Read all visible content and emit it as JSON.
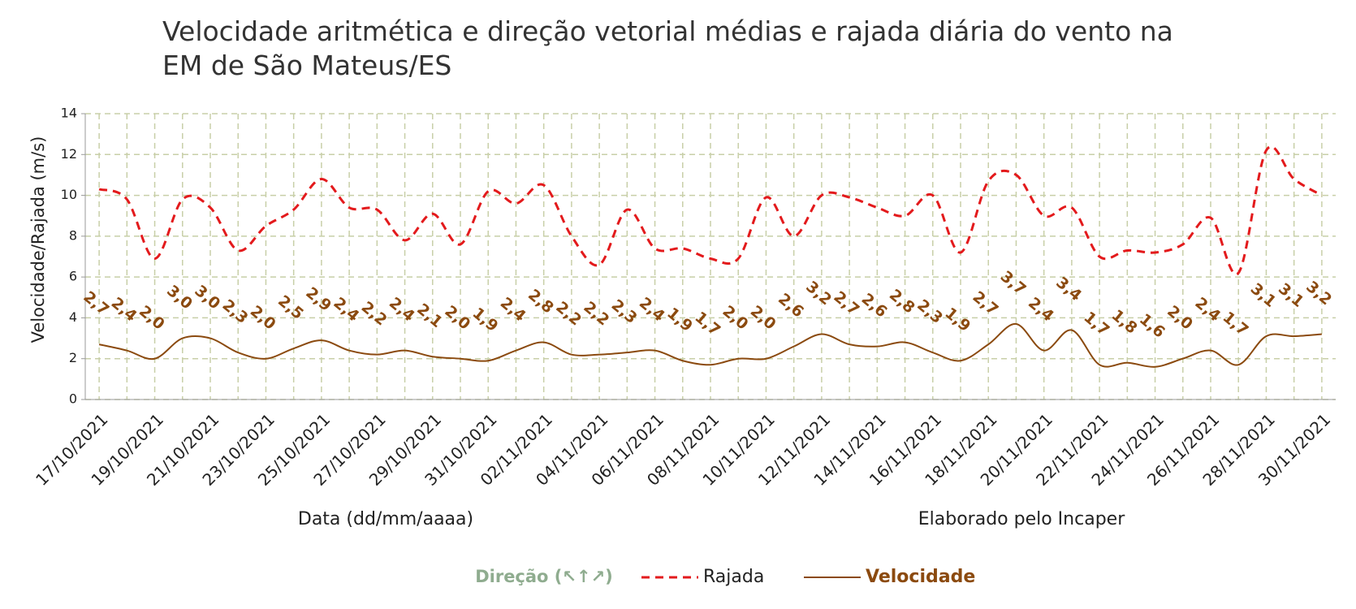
{
  "chart_data": {
    "type": "line",
    "title": "Velocidade aritmética e direção vetorial médias e rajada diária do vento na EM de São Mateus/ES",
    "y_label": "Velocidade/Rajada (m/s)",
    "x_label": "Data (dd/mm/aaaa)",
    "credit": "Elaborado pelo Incaper",
    "direction_legend": "Direção (↖↑↗)",
    "categories": [
      "17/10/2021",
      null,
      "19/10/2021",
      null,
      "21/10/2021",
      null,
      "23/10/2021",
      null,
      "25/10/2021",
      null,
      "27/10/2021",
      null,
      "29/10/2021",
      null,
      "31/10/2021",
      null,
      "02/11/2021",
      null,
      "04/11/2021",
      null,
      "06/11/2021",
      null,
      "08/11/2021",
      null,
      "10/11/2021",
      null,
      "12/11/2021",
      null,
      "14/11/2021",
      null,
      "16/11/2021",
      null,
      "18/11/2021",
      null,
      "20/11/2021",
      null,
      "22/11/2021",
      null,
      "24/11/2021",
      null,
      "26/11/2021",
      null,
      "28/11/2021",
      null,
      "30/11/2021"
    ],
    "series": [
      {
        "name": "Rajada",
        "color": "#e31a1c",
        "dash": true,
        "values": [
          10.3,
          9.8,
          6.9,
          9.8,
          9.4,
          7.3,
          8.5,
          9.3,
          10.8,
          9.4,
          9.3,
          7.8,
          9.1,
          7.6,
          10.2,
          9.6,
          10.5,
          8.0,
          6.6,
          9.3,
          7.4,
          7.4,
          6.9,
          6.9,
          9.9,
          8.0,
          10.0,
          9.9,
          9.4,
          9.0,
          10.0,
          7.2,
          10.7,
          11.0,
          9.0,
          9.4,
          7.0,
          7.3,
          7.2,
          7.6,
          8.9,
          6.2,
          12.2,
          10.8,
          10.0
        ]
      },
      {
        "name": "Velocidade",
        "color": "#8b4a0f",
        "dash": false,
        "values": [
          2.7,
          2.4,
          2.0,
          3.0,
          3.0,
          2.3,
          2.0,
          2.5,
          2.9,
          2.4,
          2.2,
          2.4,
          2.1,
          2.0,
          1.9,
          2.4,
          2.8,
          2.2,
          2.2,
          2.3,
          2.4,
          1.9,
          1.7,
          2.0,
          2.0,
          2.6,
          3.2,
          2.7,
          2.6,
          2.8,
          2.3,
          1.9,
          2.7,
          3.7,
          2.4,
          3.4,
          1.7,
          1.8,
          1.6,
          2.0,
          2.4,
          1.7,
          3.1,
          3.1,
          3.2
        ],
        "value_labels": [
          "2,7",
          "2,4",
          "2,0",
          "3,0",
          "3,0",
          "2,3",
          "2,0",
          "2,5",
          "2,9",
          "2,4",
          "2,2",
          "2,4",
          "2,1",
          "2,0",
          "1,9",
          "2,4",
          "2,8",
          "2,2",
          "2,2",
          "2,3",
          "2,4",
          "1,9",
          "1,7",
          "2,0",
          "2,0",
          "2,6",
          "3,2",
          "2,7",
          "2,6",
          "2,8",
          "2,3",
          "1,9",
          "2,7",
          "3,7",
          "2,4",
          "3,4",
          "1,7",
          "1,8",
          "1,6",
          "2,0",
          "2,4",
          "1,7",
          "3,1",
          "3,1",
          "3,2"
        ]
      }
    ],
    "ylim": [
      0,
      14
    ],
    "yticks": [
      0,
      2,
      4,
      6,
      8,
      10,
      12,
      14
    ],
    "grid": true
  }
}
